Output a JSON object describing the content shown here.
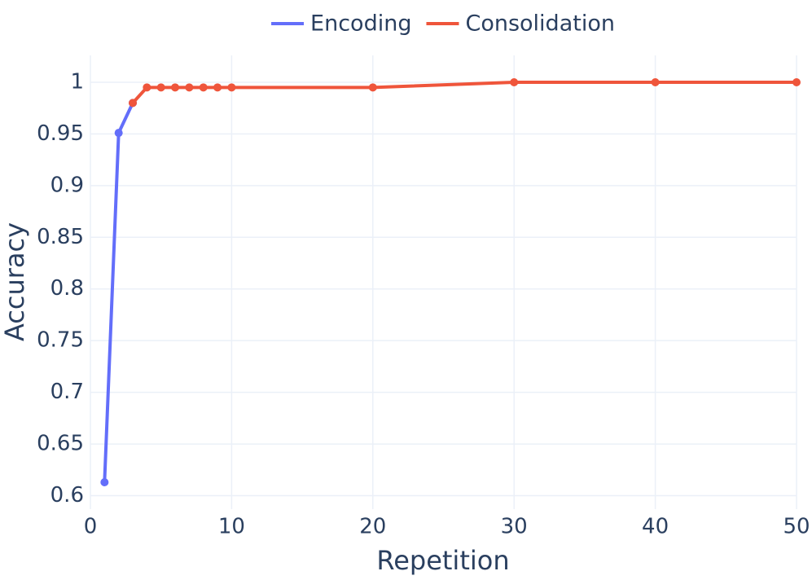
{
  "chart_data": {
    "type": "line",
    "x_label": "Repetition",
    "y_label": "Accuracy",
    "series": [
      {
        "name": "Encoding",
        "color": "#636efa",
        "x": [
          1,
          2,
          3
        ],
        "values": [
          0.613,
          0.951,
          0.98
        ]
      },
      {
        "name": "Consolidation",
        "color": "#ef553b",
        "x": [
          3,
          4,
          5,
          6,
          7,
          8,
          9,
          10,
          20,
          30,
          40,
          50
        ],
        "values": [
          0.98,
          0.995,
          0.995,
          0.995,
          0.995,
          0.995,
          0.995,
          0.995,
          0.995,
          1,
          1,
          1
        ]
      }
    ],
    "xlim": [
      0,
      50
    ],
    "xticks": [
      0,
      10,
      20,
      30,
      40,
      50
    ],
    "ylim": [
      0.587,
      1.026
    ],
    "yticks": [
      0.6,
      0.65,
      0.7,
      0.75,
      0.8,
      0.85,
      0.9,
      0.95,
      1
    ],
    "grid": true,
    "legend": "top",
    "markers": true
  }
}
